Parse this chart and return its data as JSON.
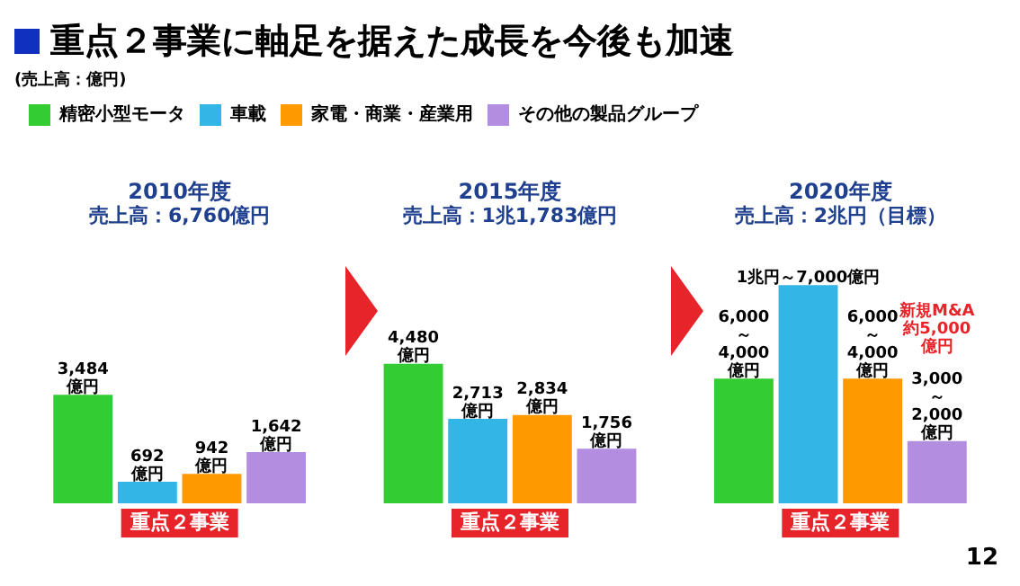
{
  "chart_data": {
    "type": "bar",
    "title": "重点２事業に軸足を据えた成長を今後も加速",
    "categories": [
      "2010年度",
      "2015年度",
      "2020年度"
    ],
    "series": [
      {
        "name": "精密小型モータ",
        "color": "#33cc33",
        "values": [
          3484,
          4480,
          4000
        ],
        "value_labels": [
          "3,484\n億円",
          "4,480\n億円",
          "6,000\n～\n4,000\n億円"
        ]
      },
      {
        "name": "車載",
        "color": "#33b5e5",
        "values": [
          692,
          2713,
          7000
        ],
        "value_labels": [
          "692\n億円",
          "2,713\n億円",
          "1兆円～7,000億円"
        ]
      },
      {
        "name": "家電・商業・産業用",
        "color": "#ff9900",
        "values": [
          942,
          2834,
          4000
        ],
        "value_labels": [
          "942\n億円",
          "2,834\n億円",
          "6,000\n～\n4,000\n億円"
        ]
      },
      {
        "name": "その他の製品グループ",
        "color": "#b38de0",
        "values": [
          1642,
          1756,
          2000
        ],
        "value_labels": [
          "1,642\n億円",
          "1,756\n億円",
          "3,000\n～\n2,000\n億円"
        ]
      }
    ],
    "annotations": [
      "売上高：6,760億円",
      "売上高：1兆1,783億円",
      "売上高：2兆円（目標）",
      "重点２事業",
      "重点２事業",
      "重点２事業",
      "新規M&A\n約5,000\n億円",
      "12",
      "(売上高：億円)"
    ],
    "legend": "top left",
    "grid": false
  }
}
